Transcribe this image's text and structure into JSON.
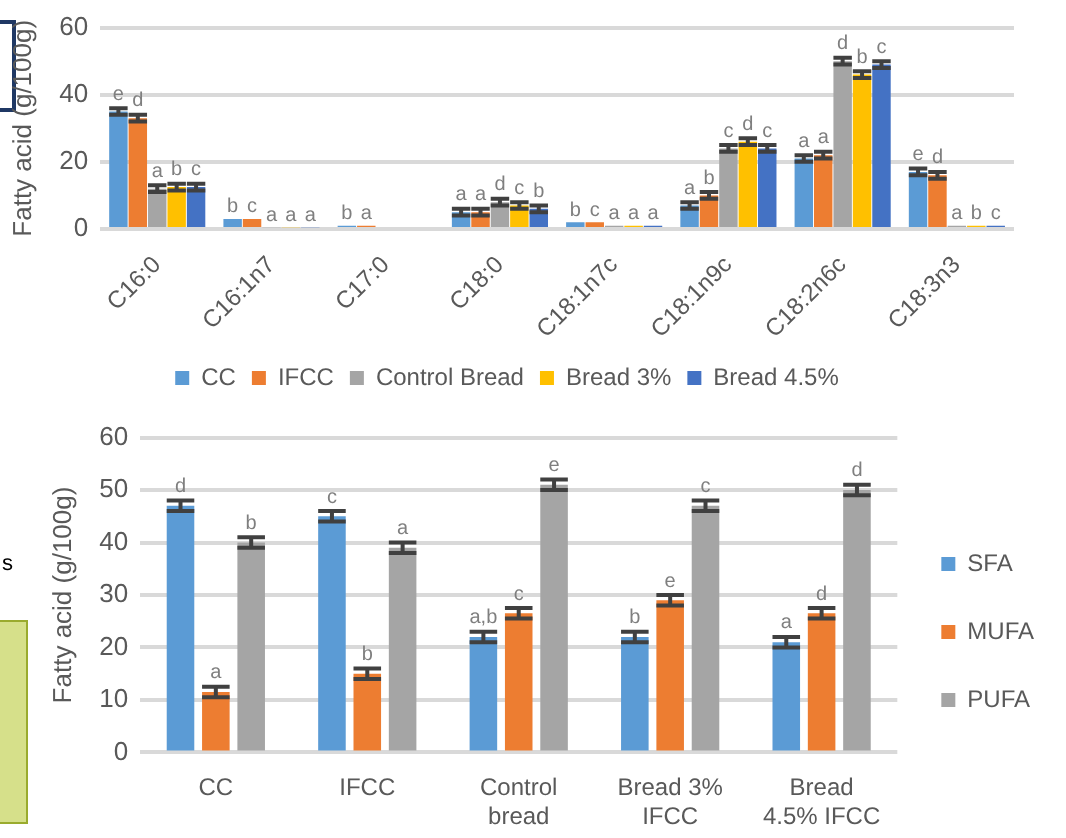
{
  "chart_data": [
    {
      "type": "bar",
      "ylabel": "Fatty acid (g/100g)",
      "categories": [
        "C16:0",
        "C16:1n7",
        "C17:0",
        "C18:0",
        "C18:1n7c",
        "C18:1n9c",
        "C18:2n6c",
        "C18:3n3"
      ],
      "series": [
        {
          "name": "CC",
          "color": "#5b9bd5",
          "values": [
            35,
            3,
            1,
            5,
            2,
            7,
            21,
            17
          ],
          "errors": [
            1,
            null,
            null,
            1,
            null,
            1,
            1,
            1
          ],
          "value_labels": [
            "e",
            "b",
            "b",
            "a",
            "b",
            "a",
            "a",
            "e"
          ]
        },
        {
          "name": "IFCC",
          "color": "#ed7d31",
          "values": [
            33,
            3,
            1,
            5,
            2,
            10,
            22,
            16
          ],
          "errors": [
            1,
            null,
            null,
            1,
            null,
            1,
            1,
            1
          ],
          "value_labels": [
            "d",
            "c",
            "a",
            "a",
            "c",
            "b",
            "a",
            "d"
          ]
        },
        {
          "name": "Control Bread",
          "color": "#a5a5a5",
          "values": [
            12,
            0.5,
            null,
            8,
            1,
            24,
            50,
            1
          ],
          "errors": [
            1,
            null,
            null,
            1,
            null,
            1,
            1,
            null
          ],
          "value_labels": [
            "a",
            "a",
            null,
            "d",
            "a",
            "c",
            "d",
            "a"
          ]
        },
        {
          "name": "Bread 3%",
          "color": "#ffc000",
          "values": [
            12.5,
            0.5,
            null,
            7,
            1,
            26,
            46,
            1
          ],
          "errors": [
            1,
            null,
            null,
            1,
            null,
            1,
            1,
            null
          ],
          "value_labels": [
            "b",
            "a",
            null,
            "c",
            "a",
            "d",
            "b",
            "b"
          ]
        },
        {
          "name": "Bread 4.5%",
          "color": "#4472c4",
          "values": [
            12.5,
            0.5,
            null,
            6,
            1,
            24,
            49,
            1
          ],
          "errors": [
            1,
            null,
            null,
            1,
            null,
            1,
            1,
            null
          ],
          "value_labels": [
            "c",
            "a",
            null,
            "b",
            "a",
            "c",
            "c",
            "c"
          ]
        }
      ],
      "ylim": [
        0,
        60
      ],
      "yticks": [
        0,
        20,
        40,
        60
      ],
      "grid": "y",
      "legend": "bottom"
    },
    {
      "type": "bar",
      "ylabel": "Fatty acid (g/100g)",
      "annotations": [
        "s"
      ],
      "categories": [
        "CC",
        "IFCC",
        "Control bread",
        "Bread 3% IFCC",
        "Bread 4.5% IFCC"
      ],
      "series": [
        {
          "name": "SFA",
          "color": "#5b9bd5",
          "values": [
            47,
            45,
            22,
            22,
            21
          ],
          "errors": [
            1,
            1,
            1,
            1,
            1
          ],
          "value_labels": [
            "d",
            "c",
            "a,b",
            "b",
            "a"
          ]
        },
        {
          "name": "MUFA",
          "color": "#ed7d31",
          "values": [
            11.5,
            15,
            26.5,
            29,
            26.5
          ],
          "errors": [
            1,
            1,
            1,
            1,
            1
          ],
          "value_labels": [
            "a",
            "b",
            "c",
            "e",
            "d"
          ]
        },
        {
          "name": "PUFA",
          "color": "#a5a5a5",
          "values": [
            40,
            39,
            51,
            47,
            50
          ],
          "errors": [
            1,
            1,
            1,
            1,
            1
          ],
          "value_labels": [
            "b",
            "a",
            "e",
            "c",
            "d"
          ]
        }
      ],
      "ylim": [
        0,
        60
      ],
      "yticks": [
        0,
        10,
        20,
        30,
        40,
        50,
        60
      ],
      "grid": "y",
      "legend": "right"
    }
  ]
}
